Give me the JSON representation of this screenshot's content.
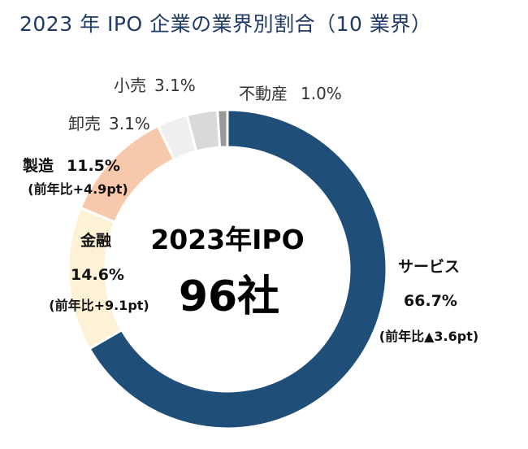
{
  "chart_data": {
    "type": "pie",
    "title": "2023 年 IPO 企業の業界別割合（10 業界）",
    "center": {
      "line1": "2023年IPO",
      "line2": "96社"
    },
    "slices": [
      {
        "key": "service",
        "category": "サービス",
        "value": 66.7,
        "value_label": "66.7%",
        "note": "(前年比▲3.6pt)",
        "color": "#1f4e79"
      },
      {
        "key": "finance",
        "category": "金融",
        "value": 14.6,
        "value_label": "14.6%",
        "note": "(前年比+9.1pt)",
        "color": "#fdf1d6"
      },
      {
        "key": "manufacture",
        "category": "製造",
        "value": 11.5,
        "value_label": "11.5%",
        "note": "(前年比+4.9pt)",
        "color": "#f6c9ad"
      },
      {
        "key": "wholesale",
        "category": "卸売",
        "value": 3.1,
        "value_label": "3.1%",
        "note": "",
        "color": "#efefef"
      },
      {
        "key": "retail",
        "category": "小売",
        "value": 3.1,
        "value_label": "3.1%",
        "note": "",
        "color": "#d9d9d9"
      },
      {
        "key": "realestate",
        "category": "不動産",
        "value": 1.0,
        "value_label": "1.0%",
        "note": "",
        "color": "#9a9a9a"
      }
    ],
    "start_angle_deg": 0,
    "direction": "clockwise",
    "legend": "none"
  }
}
